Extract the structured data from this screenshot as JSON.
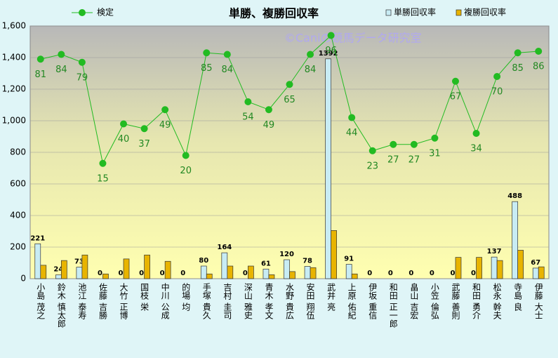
{
  "chart_data": {
    "type": "bar-line",
    "title": "単勝、複勝回収率",
    "watermark": "©Caniの競馬データ研究室",
    "categories": [
      "小島 茂之",
      "鈴木 慎太郎",
      "池江 泰寿",
      "佐藤 吉勝",
      "大竹 正博",
      "国枝 栄",
      "中川 公成",
      "的場 均",
      "手塚 貴久",
      "吉村 圭司",
      "深山 雅史",
      "青木 孝文",
      "水野 貴広",
      "安田 翔伍",
      "武井 亮",
      "上原 佑紀",
      "伊坂 重信",
      "和田 正一郎",
      "畠山 吉宏",
      "小笠 倫弘",
      "武藤 善則",
      "和田 勇介",
      "松永 幹夫",
      "寺島 良",
      "伊藤 大士"
    ],
    "series": [
      {
        "name": "単勝回収率",
        "type": "bar",
        "color": "#c8ecf4",
        "values": [
          221,
          24,
          73,
          0,
          0,
          0,
          0,
          0,
          80,
          164,
          0,
          61,
          120,
          78,
          1392,
          91,
          0,
          0,
          0,
          0,
          0,
          0,
          137,
          488,
          67
        ]
      },
      {
        "name": "複勝回収率",
        "type": "bar",
        "color": "#e8b400",
        "values": [
          85,
          115,
          150,
          30,
          125,
          150,
          110,
          0,
          30,
          80,
          80,
          25,
          45,
          70,
          305,
          30,
          0,
          0,
          0,
          0,
          135,
          135,
          115,
          180,
          75
        ]
      },
      {
        "name": "検定",
        "type": "line",
        "axis": "y2",
        "color": "#22bb22",
        "values": [
          81,
          84,
          79,
          15,
          40,
          37,
          49,
          20,
          85,
          84,
          54,
          49,
          65,
          84,
          96,
          44,
          23,
          27,
          27,
          31,
          67,
          34,
          70,
          85,
          86
        ]
      }
    ],
    "ylim": [
      0,
      1600
    ],
    "yticks": [
      0,
      200,
      400,
      600,
      800,
      {
        "value": 1000,
        "label": "1,000"
      },
      {
        "value": 1200,
        "label": "1,200"
      },
      {
        "value": 1400,
        "label": "1,400"
      },
      {
        "value": 1600,
        "label": "1,600"
      }
    ],
    "y2lim": [
      -58,
      102
    ],
    "grid": true
  }
}
